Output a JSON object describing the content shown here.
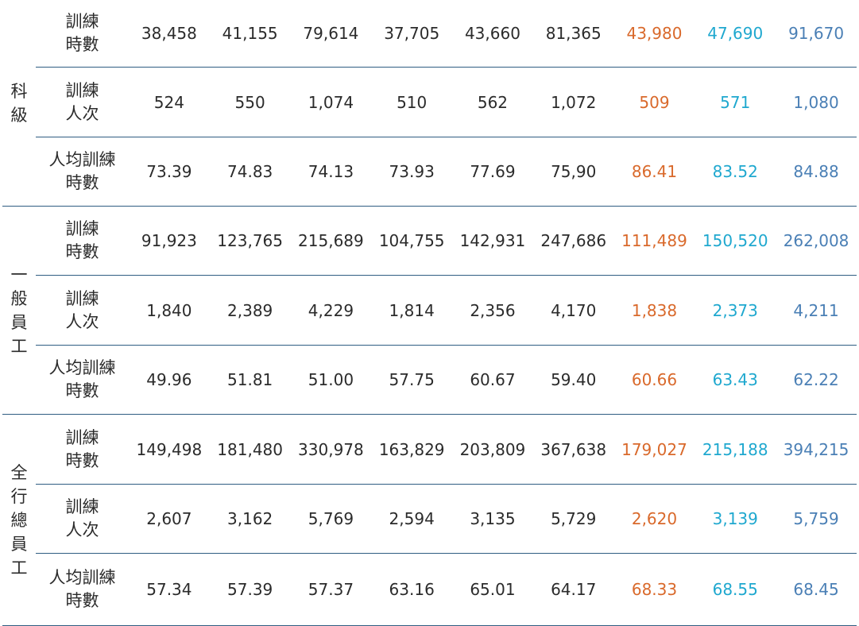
{
  "groups": [
    {
      "name_chars": [
        "科",
        "級"
      ],
      "rows": [
        {
          "label": [
            "訓練",
            "時數"
          ],
          "values": [
            "38,458",
            "41,155",
            "79,614",
            "37,705",
            "43,660",
            "81,365",
            "43,980",
            "47,690",
            "91,670"
          ]
        },
        {
          "label": [
            "訓練",
            "人次"
          ],
          "values": [
            "524",
            "550",
            "1,074",
            "510",
            "562",
            "1,072",
            "509",
            "571",
            "1,080"
          ]
        },
        {
          "label": [
            "人均訓練",
            "時數"
          ],
          "values": [
            "73.39",
            "74.83",
            "74.13",
            "73.93",
            "77.69",
            "75,90",
            "86.41",
            "83.52",
            "84.88"
          ]
        }
      ]
    },
    {
      "name_chars": [
        "一",
        "般",
        "員",
        "工"
      ],
      "rows": [
        {
          "label": [
            "訓練",
            "時數"
          ],
          "values": [
            "91,923",
            "123,765",
            "215,689",
            "104,755",
            "142,931",
            "247,686",
            "111,489",
            "150,520",
            "262,008"
          ]
        },
        {
          "label": [
            "訓練",
            "人次"
          ],
          "values": [
            "1,840",
            "2,389",
            "4,229",
            "1,814",
            "2,356",
            "4,170",
            "1,838",
            "2,373",
            "4,211"
          ]
        },
        {
          "label": [
            "人均訓練",
            "時數"
          ],
          "values": [
            "49.96",
            "51.81",
            "51.00",
            "57.75",
            "60.67",
            "59.40",
            "60.66",
            "63.43",
            "62.22"
          ]
        }
      ]
    },
    {
      "name_chars": [
        "全",
        "行",
        "總",
        "員",
        "工"
      ],
      "rows": [
        {
          "label": [
            "訓練",
            "時數"
          ],
          "values": [
            "149,498",
            "181,480",
            "330,978",
            "163,829",
            "203,809",
            "367,638",
            "179,027",
            "215,188",
            "394,215"
          ]
        },
        {
          "label": [
            "訓練",
            "人次"
          ],
          "values": [
            "2,607",
            "3,162",
            "5,769",
            "2,594",
            "3,135",
            "5,729",
            "2,620",
            "3,139",
            "5,759"
          ]
        },
        {
          "label": [
            "人均訓練",
            "時數"
          ],
          "values": [
            "57.34",
            "57.39",
            "57.37",
            "63.16",
            "65.01",
            "64.17",
            "68.33",
            "68.55",
            "68.45"
          ]
        }
      ]
    }
  ],
  "column_colors": [
    "#2b2b2b",
    "#2b2b2b",
    "#2b2b2b",
    "#2b2b2b",
    "#2b2b2b",
    "#2b2b2b",
    "#d9692b",
    "#1fa8cf",
    "#4a7fb5"
  ]
}
